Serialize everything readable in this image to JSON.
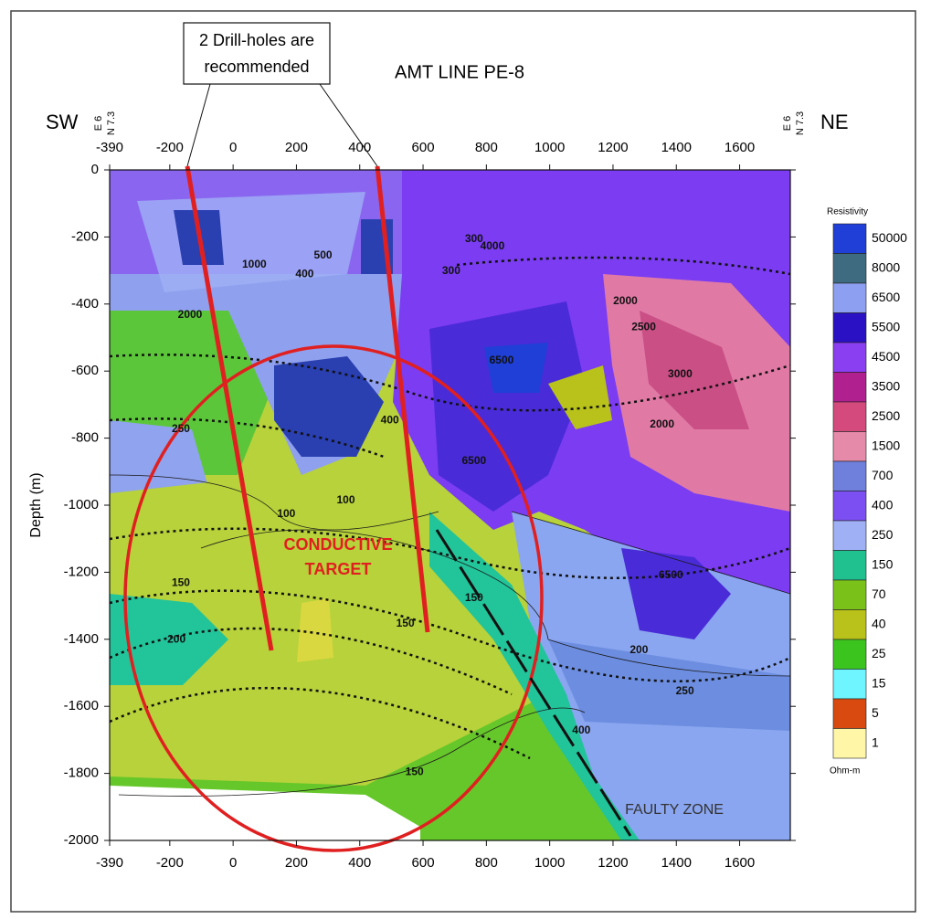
{
  "chart_data": {
    "type": "contour",
    "title": "AMT LINE PE-8",
    "y_label": "Depth (m)",
    "left_label": "SW",
    "right_label": "NE",
    "corner_label_lines": [
      "E 6",
      "N 7.3"
    ],
    "xlim": [
      -390,
      1760
    ],
    "xticks": [
      -390,
      -200,
      0,
      200,
      400,
      600,
      800,
      1000,
      1200,
      1400,
      1600
    ],
    "ylim": [
      -2000,
      0
    ],
    "yticks": [
      0,
      -200,
      -400,
      -600,
      -800,
      -1000,
      -1200,
      -1400,
      -1600,
      -1800,
      -2000
    ],
    "colorbar": {
      "title": "Resistivity",
      "unit": "Ohm-m",
      "levels": [
        50000,
        8000,
        6500,
        5500,
        4500,
        3500,
        2500,
        1500,
        700,
        400,
        250,
        150,
        70,
        40,
        25,
        15,
        5,
        1
      ],
      "colors": [
        "#1f3fd6",
        "#3e6b80",
        "#8c9ff0",
        "#2a12c4",
        "#8a3ff0",
        "#b0208f",
        "#d44a7c",
        "#e58aa8",
        "#6f7fdc",
        "#7c4ff2",
        "#9fb0f5",
        "#20c08f",
        "#7ac21a",
        "#b8c21a",
        "#3cc41e",
        "#6ef5ff",
        "#d84a10",
        "#fff6a8"
      ]
    },
    "contour_labels": [
      {
        "x": -136,
        "y": -433,
        "value": 2000
      },
      {
        "x": 67,
        "y": -283,
        "value": 1000
      },
      {
        "x": 284,
        "y": -256,
        "value": 500
      },
      {
        "x": 226,
        "y": -311,
        "value": 400
      },
      {
        "x": 761,
        "y": -207,
        "value": 300
      },
      {
        "x": 819,
        "y": -229,
        "value": 4000
      },
      {
        "x": 689,
        "y": -302,
        "value": 300
      },
      {
        "x": 1239,
        "y": -392,
        "value": 2000
      },
      {
        "x": 1297,
        "y": -469,
        "value": 2500
      },
      {
        "x": 1412,
        "y": -610,
        "value": 3000
      },
      {
        "x": 1355,
        "y": -760,
        "value": 2000
      },
      {
        "x": 848,
        "y": -569,
        "value": 6500
      },
      {
        "x": 761,
        "y": -869,
        "value": 6500
      },
      {
        "x": 495,
        "y": -747,
        "value": 400
      },
      {
        "x": -165,
        "y": -774,
        "value": 250
      },
      {
        "x": 168,
        "y": -1027,
        "value": 100
      },
      {
        "x": 356,
        "y": -986,
        "value": 100
      },
      {
        "x": -165,
        "y": -1232,
        "value": 150
      },
      {
        "x": -179,
        "y": -1401,
        "value": 200
      },
      {
        "x": 761,
        "y": -1278,
        "value": 150
      },
      {
        "x": 544,
        "y": -1354,
        "value": 150
      },
      {
        "x": 1383,
        "y": -1210,
        "value": 6500
      },
      {
        "x": 1282,
        "y": -1433,
        "value": 200
      },
      {
        "x": 1427,
        "y": -1556,
        "value": 250
      },
      {
        "x": 1100,
        "y": -1673,
        "value": 400
      },
      {
        "x": 573,
        "y": -1796,
        "value": 150
      }
    ],
    "annotations": {
      "callout": [
        "2 Drill-holes are",
        "recommended"
      ],
      "target": [
        "CONDUCTIVE",
        "TARGET"
      ],
      "fault": "FAULTY ZONE"
    }
  }
}
